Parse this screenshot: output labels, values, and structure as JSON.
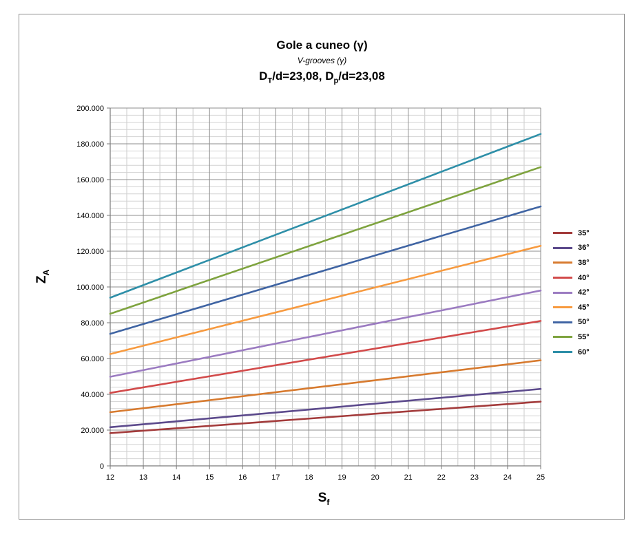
{
  "chart_data": {
    "type": "line",
    "title": "Gole a cuneo (γ)",
    "subtitle": "V-grooves (γ)",
    "subtitle2_parts": [
      "D",
      "T",
      "/d=23,08, D",
      "p",
      "/d=23,08"
    ],
    "xlabel_main": "S",
    "xlabel_sub": "f",
    "ylabel_main": "Z",
    "ylabel_sub": "A",
    "xlim": [
      12,
      25
    ],
    "ylim": [
      0,
      200000
    ],
    "x_ticks": [
      "12",
      "13",
      "14",
      "15",
      "16",
      "17",
      "18",
      "19",
      "20",
      "21",
      "22",
      "23",
      "24",
      "25"
    ],
    "y_ticks": [
      "0",
      "20.000",
      "40.000",
      "60.000",
      "80.000",
      "100.000",
      "120.000",
      "140.000",
      "160.000",
      "180.000",
      "200.000"
    ],
    "grid": "on",
    "legend_position": "right",
    "series": [
      {
        "name": "35°",
        "color": "#a33b3b",
        "x": [
          12,
          25
        ],
        "values": [
          18300,
          35900
        ]
      },
      {
        "name": "36°",
        "color": "#5c4a8c",
        "x": [
          12,
          25
        ],
        "values": [
          21600,
          43000
        ]
      },
      {
        "name": "38°",
        "color": "#d77a2e",
        "x": [
          12,
          25
        ],
        "values": [
          30000,
          59000
        ]
      },
      {
        "name": "40°",
        "color": "#d24a4a",
        "x": [
          12,
          25
        ],
        "values": [
          40800,
          81000
        ]
      },
      {
        "name": "42°",
        "color": "#9b7bc1",
        "x": [
          12,
          25
        ],
        "values": [
          49800,
          98000
        ]
      },
      {
        "name": "45°",
        "color": "#f79a3f",
        "x": [
          12,
          25
        ],
        "values": [
          62500,
          123000
        ]
      },
      {
        "name": "50°",
        "color": "#3f64a3",
        "x": [
          12,
          25
        ],
        "values": [
          73800,
          145000
        ]
      },
      {
        "name": "55°",
        "color": "#7ea33e",
        "x": [
          12,
          25
        ],
        "values": [
          85000,
          167000
        ]
      },
      {
        "name": "60°",
        "color": "#2e8fa8",
        "x": [
          12,
          25
        ],
        "values": [
          94000,
          185500
        ]
      }
    ]
  }
}
